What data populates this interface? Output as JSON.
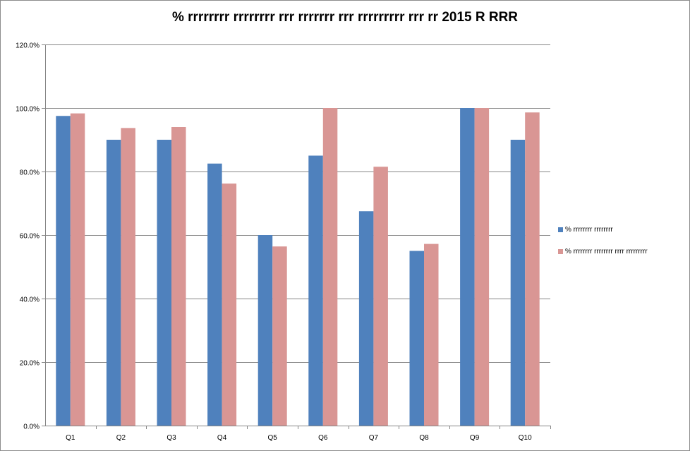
{
  "chart_data": {
    "type": "bar",
    "title": "% rrrrrrrr rrrrrrrr rrr rrrrrrr rrr rrrrrrrrr rrr rr 2015 R RRR",
    "xlabel": "",
    "ylabel": "",
    "categories": [
      "Q1",
      "Q2",
      "Q3",
      "Q4",
      "Q5",
      "Q6",
      "Q7",
      "Q8",
      "Q9",
      "Q10"
    ],
    "series": [
      {
        "name": "% rrrrrrrr rrrrrrrr",
        "color": "#4f81bd",
        "values": [
          97.5,
          90.0,
          90.0,
          82.5,
          60.0,
          85.0,
          67.5,
          55.0,
          100.0,
          90.0
        ]
      },
      {
        "name": "% rrrrrrrr rrrrrrrr rrrr rrrrrrrrr",
        "color": "#d99694",
        "values": [
          98.3,
          93.7,
          94.0,
          76.2,
          56.4,
          100.0,
          81.5,
          57.2,
          100.0,
          98.6
        ]
      }
    ],
    "ylim": [
      0,
      120
    ],
    "yticks": [
      "0.0%",
      "20.0%",
      "40.0%",
      "60.0%",
      "80.0%",
      "100.0%",
      "120.0%"
    ],
    "grid": true,
    "legend_position": "right"
  }
}
